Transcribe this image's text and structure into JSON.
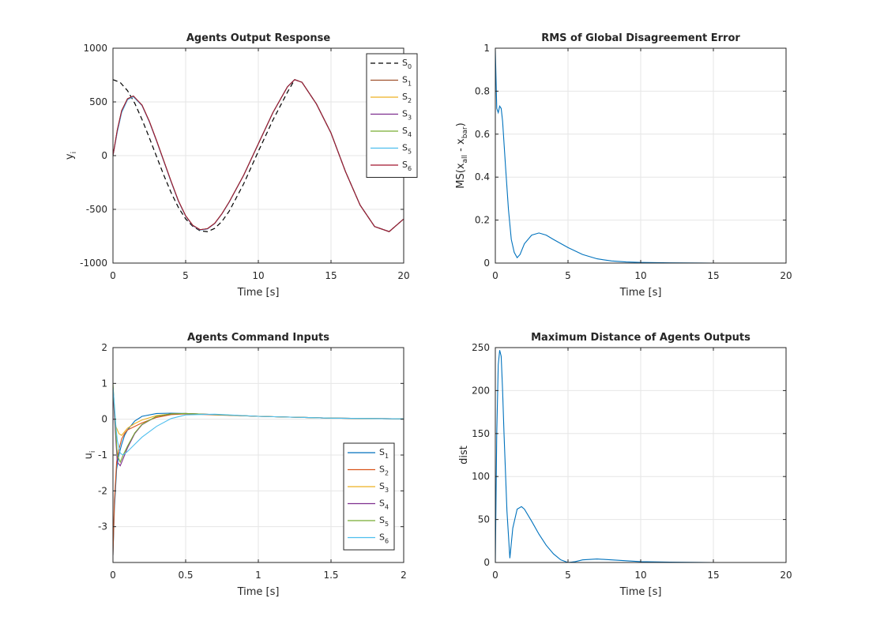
{
  "chart_data": [
    {
      "type": "line",
      "title": "Agents Output Response",
      "xlabel": "Time [s]",
      "ylabel": "y_i",
      "ylabel_main": "y",
      "ylabel_sub": "i",
      "xlim": [
        0,
        20
      ],
      "ylim": [
        -1000,
        1000
      ],
      "xticks": [
        0,
        5,
        10,
        15,
        20
      ],
      "yticks": [
        -1000,
        -500,
        0,
        500,
        1000
      ],
      "grid": true,
      "legend_position": "top-right",
      "series": [
        {
          "name": "S_0",
          "label_main": "S",
          "label_sub": "0",
          "color": "#000000",
          "dash": true,
          "x": [
            0,
            0.5,
            1,
            1.5,
            2,
            2.5,
            3,
            3.5,
            4,
            4.5,
            5,
            5.5,
            6,
            6.5,
            7,
            7.5,
            8,
            9,
            10,
            11,
            12,
            12.5,
            13,
            14,
            15,
            16,
            17,
            18,
            19,
            20
          ],
          "y": [
            707,
            681,
            605,
            487,
            336,
            167,
            -9,
            -183,
            -344,
            -482,
            -589,
            -659,
            -700,
            -707,
            -677,
            -612,
            -516,
            -260,
            40,
            330,
            590,
            707,
            683,
            480,
            210,
            -150,
            -460,
            -660,
            -707,
            -590
          ]
        },
        {
          "name": "S_1",
          "label_main": "S",
          "label_sub": "1",
          "color": "#a0522d",
          "x": [
            0,
            0.3,
            0.6,
            1,
            1.4,
            2,
            2.5,
            3,
            3.5,
            4,
            4.5,
            5,
            5.5,
            6,
            6.5,
            7,
            7.5,
            8,
            9,
            10,
            11,
            12,
            12.5,
            13,
            14,
            15,
            16,
            17,
            18,
            19,
            20
          ],
          "y": [
            0,
            240,
            420,
            530,
            555,
            470,
            320,
            140,
            -50,
            -240,
            -420,
            -560,
            -650,
            -690,
            -680,
            -630,
            -540,
            -430,
            -180,
            110,
            400,
            640,
            707,
            683,
            480,
            210,
            -150,
            -460,
            -660,
            -707,
            -590
          ]
        },
        {
          "name": "S_2",
          "label_main": "S",
          "label_sub": "2",
          "color": "#edb120",
          "x": [
            0,
            0.3,
            0.6,
            1,
            1.4,
            2,
            2.5,
            3,
            3.5,
            4,
            4.5,
            5,
            5.5,
            6,
            6.5,
            7,
            7.5,
            8,
            9,
            10,
            11,
            12,
            12.5,
            13,
            14,
            15,
            16,
            17,
            18,
            19,
            20
          ],
          "y": [
            0,
            230,
            410,
            525,
            552,
            468,
            318,
            138,
            -52,
            -242,
            -422,
            -561,
            -651,
            -691,
            -681,
            -630,
            -540,
            -430,
            -180,
            110,
            400,
            640,
            707,
            683,
            480,
            210,
            -150,
            -460,
            -660,
            -707,
            -590
          ]
        },
        {
          "name": "S_3",
          "label_main": "S",
          "label_sub": "3",
          "color": "#7e2f8e",
          "x": [
            0,
            0.3,
            0.6,
            1,
            1.4,
            2,
            2.5,
            3,
            3.5,
            4,
            4.5,
            5,
            5.5,
            6,
            6.5,
            7,
            7.5,
            8,
            9,
            10,
            11,
            12,
            12.5,
            13,
            14,
            15,
            16,
            17,
            18,
            19,
            20
          ],
          "y": [
            0,
            225,
            405,
            522,
            550,
            466,
            316,
            136,
            -54,
            -244,
            -424,
            -562,
            -652,
            -692,
            -682,
            -631,
            -541,
            -431,
            -180,
            110,
            400,
            640,
            707,
            683,
            480,
            210,
            -150,
            -460,
            -660,
            -707,
            -590
          ]
        },
        {
          "name": "S_4",
          "label_main": "S",
          "label_sub": "4",
          "color": "#77ac30",
          "x": [
            0,
            0.3,
            0.6,
            1,
            1.4,
            2,
            2.5,
            3,
            3.5,
            4,
            4.5,
            5,
            5.5,
            6,
            6.5,
            7,
            7.5,
            8,
            9,
            10,
            11,
            12,
            12.5,
            13,
            14,
            15,
            16,
            17,
            18,
            19,
            20
          ],
          "y": [
            0,
            235,
            415,
            528,
            554,
            469,
            319,
            139,
            -51,
            -241,
            -421,
            -560,
            -650,
            -690,
            -680,
            -630,
            -540,
            -430,
            -180,
            110,
            400,
            640,
            707,
            683,
            480,
            210,
            -150,
            -460,
            -660,
            -707,
            -590
          ]
        },
        {
          "name": "S_5",
          "label_main": "S",
          "label_sub": "5",
          "color": "#4dbeee",
          "x": [
            0,
            0.3,
            0.6,
            1,
            1.4,
            2,
            2.5,
            3,
            3.5,
            4,
            4.5,
            5,
            5.5,
            6,
            6.5,
            7,
            7.5,
            8,
            9,
            10,
            11,
            12,
            12.5,
            13,
            14,
            15,
            16,
            17,
            18,
            19,
            20
          ],
          "y": [
            0,
            220,
            400,
            520,
            548,
            465,
            315,
            135,
            -55,
            -245,
            -425,
            -563,
            -653,
            -693,
            -683,
            -632,
            -542,
            -432,
            -181,
            110,
            400,
            640,
            707,
            683,
            480,
            210,
            -150,
            -460,
            -660,
            -707,
            -590
          ]
        },
        {
          "name": "S_6",
          "label_main": "S",
          "label_sub": "6",
          "color": "#a2142f",
          "x": [
            0,
            0.3,
            0.6,
            1,
            1.4,
            2,
            2.5,
            3,
            3.5,
            4,
            4.5,
            5,
            5.5,
            6,
            6.5,
            7,
            7.5,
            8,
            9,
            10,
            11,
            12,
            12.5,
            13,
            14,
            15,
            16,
            17,
            18,
            19,
            20
          ],
          "y": [
            0,
            238,
            418,
            529,
            555,
            470,
            320,
            140,
            -50,
            -240,
            -420,
            -560,
            -650,
            -690,
            -680,
            -630,
            -540,
            -430,
            -180,
            110,
            400,
            640,
            707,
            683,
            480,
            210,
            -150,
            -460,
            -660,
            -707,
            -590
          ]
        }
      ]
    },
    {
      "type": "line",
      "title": "RMS of Global Disagreement Error",
      "xlabel": "Time [s]",
      "ylabel": "MS(x_all - x_bar)",
      "xlim": [
        0,
        20
      ],
      "ylim": [
        0,
        1
      ],
      "xticks": [
        0,
        5,
        10,
        15,
        20
      ],
      "yticks": [
        0,
        0.2,
        0.4,
        0.6,
        0.8,
        1
      ],
      "grid": true,
      "series": [
        {
          "color": "#0072bd",
          "x": [
            0,
            0.1,
            0.2,
            0.3,
            0.4,
            0.5,
            0.7,
            0.9,
            1.1,
            1.3,
            1.5,
            1.7,
            2,
            2.5,
            3,
            3.5,
            4,
            5,
            6,
            7,
            8,
            9,
            10,
            12,
            15,
            20
          ],
          "y": [
            0.99,
            0.72,
            0.7,
            0.73,
            0.72,
            0.66,
            0.45,
            0.25,
            0.11,
            0.05,
            0.025,
            0.04,
            0.09,
            0.13,
            0.14,
            0.13,
            0.11,
            0.072,
            0.04,
            0.02,
            0.01,
            0.005,
            0.003,
            0.001,
            0.0,
            0.0
          ]
        }
      ]
    },
    {
      "type": "line",
      "title": "Agents Command Inputs",
      "xlabel": "Time [s]",
      "ylabel": "u_i",
      "ylabel_main": "u",
      "ylabel_sub": "i",
      "xlim": [
        0,
        2
      ],
      "ylim": [
        -4,
        2
      ],
      "xticks": [
        0,
        0.5,
        1,
        1.5,
        2
      ],
      "yticks": [
        -3,
        -2,
        -1,
        0,
        1,
        2
      ],
      "grid": true,
      "legend_position": "bottom-right",
      "series": [
        {
          "name": "S_1",
          "label_main": "S",
          "label_sub": "1",
          "color": "#0072bd",
          "x": [
            0,
            0.01,
            0.025,
            0.04,
            0.06,
            0.08,
            0.1,
            0.15,
            0.2,
            0.3,
            0.4,
            0.5,
            0.7,
            1,
            1.5,
            2
          ],
          "y": [
            -3.8,
            -2.5,
            -1.4,
            -1.0,
            -0.7,
            -0.45,
            -0.3,
            -0.05,
            0.08,
            0.16,
            0.17,
            0.16,
            0.13,
            0.08,
            0.03,
            0.01
          ]
        },
        {
          "name": "S_2",
          "label_main": "S",
          "label_sub": "2",
          "color": "#d95319",
          "x": [
            0,
            0.01,
            0.025,
            0.04,
            0.06,
            0.08,
            0.1,
            0.15,
            0.2,
            0.3,
            0.4,
            0.5,
            0.7,
            1,
            1.5,
            2
          ],
          "y": [
            -3.8,
            -2.3,
            -1.2,
            -0.85,
            -0.55,
            -0.4,
            -0.3,
            -0.2,
            -0.1,
            0.05,
            0.13,
            0.15,
            0.12,
            0.08,
            0.03,
            0.01
          ]
        },
        {
          "name": "S_3",
          "label_main": "S",
          "label_sub": "3",
          "color": "#edb120",
          "x": [
            0,
            0.01,
            0.02,
            0.04,
            0.06,
            0.08,
            0.1,
            0.15,
            0.2,
            0.3,
            0.4,
            0.5,
            0.7,
            1,
            1.5,
            2
          ],
          "y": [
            0.9,
            0.2,
            -0.2,
            -0.4,
            -0.45,
            -0.35,
            -0.25,
            -0.12,
            -0.02,
            0.1,
            0.15,
            0.16,
            0.13,
            0.08,
            0.03,
            0.01
          ]
        },
        {
          "name": "S_4",
          "label_main": "S",
          "label_sub": "4",
          "color": "#7e2f8e",
          "x": [
            0,
            0.01,
            0.02,
            0.03,
            0.05,
            0.07,
            0.1,
            0.15,
            0.2,
            0.3,
            0.4,
            0.5,
            0.7,
            1,
            1.5,
            2
          ],
          "y": [
            0.9,
            0.1,
            -0.6,
            -1.2,
            -1.3,
            -1.1,
            -0.8,
            -0.4,
            -0.15,
            0.08,
            0.15,
            0.16,
            0.13,
            0.08,
            0.03,
            0.01
          ]
        },
        {
          "name": "S_5",
          "label_main": "S",
          "label_sub": "5",
          "color": "#77ac30",
          "x": [
            0,
            0.01,
            0.02,
            0.03,
            0.05,
            0.07,
            0.1,
            0.15,
            0.2,
            0.3,
            0.4,
            0.5,
            0.7,
            1,
            1.5,
            2
          ],
          "y": [
            1.0,
            0.3,
            -0.4,
            -1.0,
            -1.2,
            -1.0,
            -0.75,
            -0.38,
            -0.14,
            0.08,
            0.15,
            0.16,
            0.13,
            0.08,
            0.03,
            0.01
          ]
        },
        {
          "name": "S_6",
          "label_main": "S",
          "label_sub": "6",
          "color": "#4dbeee",
          "x": [
            0,
            0.01,
            0.02,
            0.03,
            0.05,
            0.07,
            0.1,
            0.15,
            0.2,
            0.3,
            0.4,
            0.5,
            0.7,
            1,
            1.5,
            2
          ],
          "y": [
            0.9,
            0.4,
            -0.2,
            -0.6,
            -0.95,
            -1.0,
            -0.9,
            -0.7,
            -0.5,
            -0.2,
            0.02,
            0.12,
            0.14,
            0.08,
            0.03,
            0.01
          ]
        }
      ]
    },
    {
      "type": "line",
      "title": "Maximum Distance of Agents Outputs",
      "xlabel": "Time [s]",
      "ylabel": "dist",
      "xlim": [
        0,
        20
      ],
      "ylim": [
        0,
        250
      ],
      "xticks": [
        0,
        5,
        10,
        15,
        20
      ],
      "yticks": [
        0,
        50,
        100,
        150,
        200,
        250
      ],
      "grid": true,
      "series": [
        {
          "color": "#0072bd",
          "x": [
            0,
            0.1,
            0.2,
            0.3,
            0.4,
            0.5,
            0.6,
            0.8,
            1,
            1.2,
            1.5,
            1.8,
            2,
            2.5,
            3,
            3.5,
            4,
            4.5,
            5,
            5.5,
            6,
            7,
            8,
            9,
            10,
            12,
            15,
            20
          ],
          "y": [
            0,
            150,
            230,
            247,
            240,
            200,
            150,
            60,
            5,
            40,
            62,
            65,
            62,
            48,
            33,
            20,
            10,
            3,
            0,
            1,
            3,
            4,
            3,
            2,
            1,
            0.5,
            0,
            0
          ]
        }
      ]
    }
  ]
}
